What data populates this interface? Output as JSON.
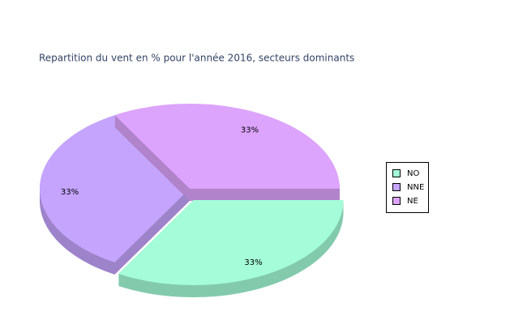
{
  "chart_data": {
    "type": "pie",
    "title": "Repartition du vent en % pour l'année 2016, secteurs dominants",
    "categories": [
      "NO",
      "NNE",
      "NE"
    ],
    "values": [
      33,
      33,
      33
    ],
    "value_labels": [
      "33%",
      "33%",
      "33%"
    ],
    "colors": [
      "#a4fcd8",
      "#c4a4fc",
      "#dca4fc"
    ],
    "exploded": [
      "NO"
    ],
    "legend": "right"
  }
}
